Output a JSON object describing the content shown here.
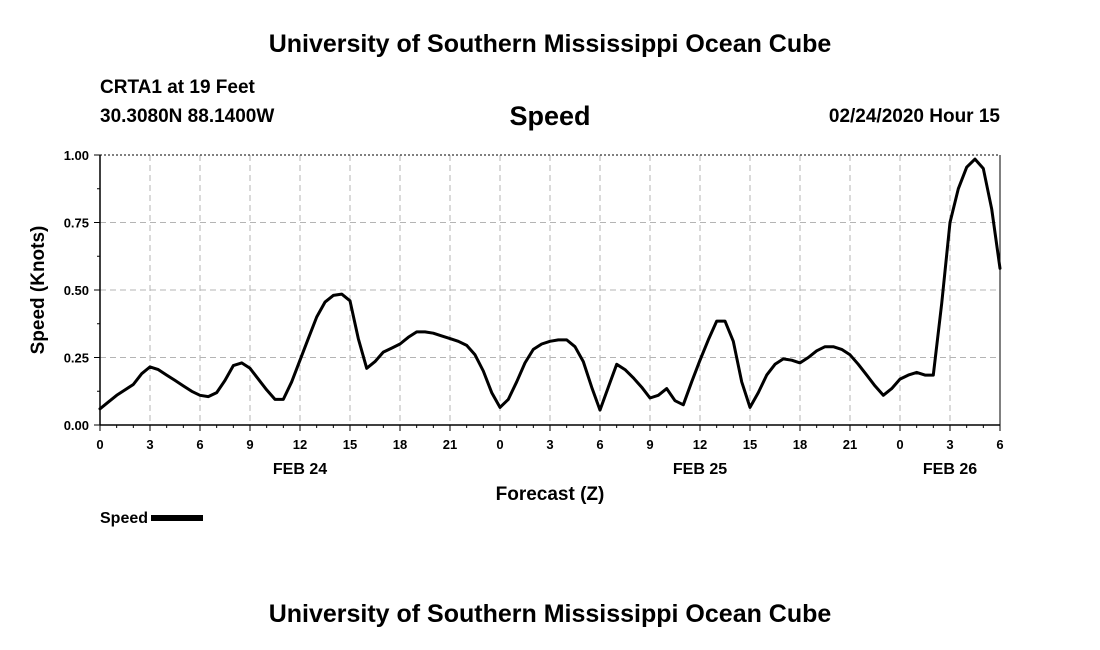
{
  "header": {
    "title_top": "University of Southern Mississippi Ocean Cube",
    "station": "CRTA1 at 19 Feet",
    "coords": "30.3080N 88.1400W",
    "variable": "Speed",
    "datetime": "02/24/2020 Hour 15"
  },
  "footer": {
    "title_bottom": "University of Southern Mississippi Ocean Cube"
  },
  "legend": {
    "label": "Speed"
  },
  "chart_data": {
    "type": "line",
    "title": "Speed",
    "xlabel": "Forecast (Z)",
    "ylabel": "Speed (Knots)",
    "xlim": [
      0,
      54
    ],
    "ylim": [
      0,
      1
    ],
    "grid": true,
    "legend_position": "bottom-left",
    "yticks": [
      {
        "value": 0,
        "label": "0.00"
      },
      {
        "value": 0.25,
        "label": "0.25"
      },
      {
        "value": 0.5,
        "label": "0.50"
      },
      {
        "value": 0.75,
        "label": "0.75"
      },
      {
        "value": 1,
        "label": "1.00"
      }
    ],
    "xticks": [
      {
        "value": 0,
        "label": "0"
      },
      {
        "value": 3,
        "label": "3"
      },
      {
        "value": 6,
        "label": "6"
      },
      {
        "value": 9,
        "label": "9"
      },
      {
        "value": 12,
        "label": "12"
      },
      {
        "value": 15,
        "label": "15"
      },
      {
        "value": 18,
        "label": "18"
      },
      {
        "value": 21,
        "label": "21"
      },
      {
        "value": 24,
        "label": "0"
      },
      {
        "value": 27,
        "label": "3"
      },
      {
        "value": 30,
        "label": "6"
      },
      {
        "value": 33,
        "label": "9"
      },
      {
        "value": 36,
        "label": "12"
      },
      {
        "value": 39,
        "label": "15"
      },
      {
        "value": 42,
        "label": "18"
      },
      {
        "value": 45,
        "label": "21"
      },
      {
        "value": 48,
        "label": "0"
      },
      {
        "value": 51,
        "label": "3"
      },
      {
        "value": 54,
        "label": "6"
      }
    ],
    "day_labels": [
      {
        "value": 12,
        "label": "FEB 24"
      },
      {
        "value": 36,
        "label": "FEB 25"
      },
      {
        "value": 51,
        "label": "FEB 26"
      }
    ],
    "series": [
      {
        "name": "Speed",
        "x": [
          0,
          0.5,
          1,
          1.5,
          2,
          2.5,
          3,
          3.5,
          4,
          4.5,
          5,
          5.5,
          6,
          6.5,
          7,
          7.5,
          8,
          8.5,
          9,
          9.5,
          10,
          10.5,
          11,
          11.5,
          12,
          12.5,
          13,
          13.5,
          14,
          14.5,
          15,
          15.5,
          16,
          16.5,
          17,
          17.5,
          18,
          18.5,
          19,
          19.5,
          20,
          20.5,
          21,
          21.5,
          22,
          22.5,
          23,
          23.5,
          24,
          24.5,
          25,
          25.5,
          26,
          26.5,
          27,
          27.5,
          28,
          28.5,
          29,
          29.5,
          30,
          30.5,
          31,
          31.5,
          32,
          32.5,
          33,
          33.5,
          34,
          34.5,
          35,
          35.5,
          36,
          36.5,
          37,
          37.5,
          38,
          38.5,
          39,
          39.5,
          40,
          40.5,
          41,
          41.5,
          42,
          42.5,
          43,
          43.5,
          44,
          44.5,
          45,
          45.5,
          46,
          46.5,
          47,
          47.5,
          48,
          48.5,
          49,
          49.5,
          50,
          50.5,
          51,
          51.5,
          52,
          52.5,
          53,
          53.5,
          54
        ],
        "values": [
          0.06,
          0.085,
          0.11,
          0.13,
          0.15,
          0.19,
          0.215,
          0.205,
          0.185,
          0.165,
          0.145,
          0.125,
          0.11,
          0.105,
          0.12,
          0.165,
          0.22,
          0.23,
          0.21,
          0.17,
          0.13,
          0.095,
          0.095,
          0.16,
          0.24,
          0.32,
          0.4,
          0.455,
          0.48,
          0.485,
          0.46,
          0.32,
          0.21,
          0.235,
          0.27,
          0.285,
          0.3,
          0.325,
          0.345,
          0.345,
          0.34,
          0.33,
          0.32,
          0.31,
          0.295,
          0.26,
          0.2,
          0.12,
          0.065,
          0.095,
          0.16,
          0.23,
          0.28,
          0.3,
          0.31,
          0.315,
          0.315,
          0.29,
          0.235,
          0.14,
          0.055,
          0.14,
          0.225,
          0.205,
          0.175,
          0.14,
          0.1,
          0.11,
          0.135,
          0.09,
          0.075,
          0.16,
          0.24,
          0.315,
          0.385,
          0.385,
          0.31,
          0.16,
          0.065,
          0.12,
          0.185,
          0.225,
          0.245,
          0.24,
          0.23,
          0.25,
          0.275,
          0.29,
          0.29,
          0.28,
          0.26,
          0.225,
          0.185,
          0.145,
          0.11,
          0.135,
          0.17,
          0.185,
          0.195,
          0.185,
          0.185,
          0.45,
          0.75,
          0.875,
          0.955,
          0.985,
          0.95,
          0.8,
          0.58
        ]
      }
    ]
  }
}
